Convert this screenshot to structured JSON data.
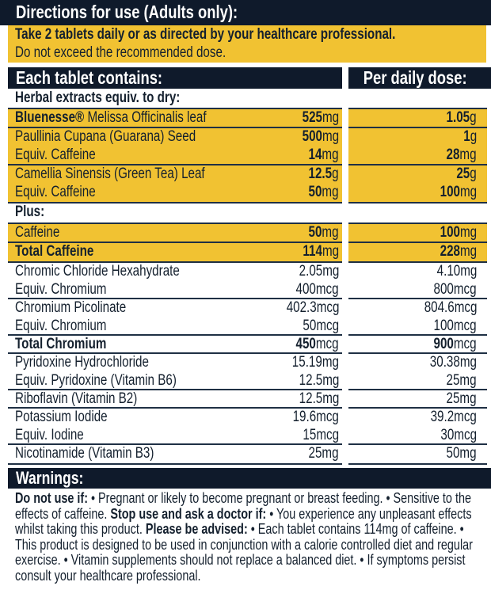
{
  "directions": {
    "title": "Directions for use (Adults only):",
    "line1": "Take 2 tablets daily or as directed by your healthcare professional.",
    "line2": "Do not exceed the recommended dose."
  },
  "table": {
    "header_left": "Each tablet contains:",
    "header_right": "Per daily dose:",
    "herbal_label": "Herbal extracts equiv. to dry:",
    "plus_label": "Plus:",
    "groups": [
      {
        "yellow": true,
        "lines": [
          {
            "name_bold": "Bluenesse®",
            "name": " Melissa Officinalis leaf",
            "amount_num": "525",
            "amount_unit": "mg",
            "daily_num": "1.05",
            "daily_unit": "g",
            "num_bold": true
          }
        ]
      },
      {
        "yellow": true,
        "lines": [
          {
            "name": "Paullinia Cupana (Guarana) Seed",
            "amount_num": "500",
            "amount_unit": "mg",
            "daily_num": "1",
            "daily_unit": "g",
            "num_bold": true
          },
          {
            "name": "Equiv. Caffeine",
            "amount_num": "14",
            "amount_unit": "mg",
            "daily_num": "28",
            "daily_unit": "mg",
            "num_bold": true
          }
        ]
      },
      {
        "yellow": true,
        "last": true,
        "lines": [
          {
            "name": "Camellia Sinensis (Green Tea) Leaf",
            "amount_num": "12.5",
            "amount_unit": "g",
            "daily_num": "25",
            "daily_unit": "g",
            "num_bold": true
          },
          {
            "name": "Equiv. Caffeine",
            "amount_num": "50",
            "amount_unit": "mg",
            "daily_num": "100",
            "daily_unit": "mg",
            "num_bold": true
          }
        ]
      },
      {
        "yellow": true,
        "lines": [
          {
            "name": "Caffeine",
            "amount_num": "50",
            "amount_unit": "mg",
            "daily_num": "100",
            "daily_unit": "mg",
            "num_bold": true
          }
        ]
      },
      {
        "yellow": true,
        "lines": [
          {
            "name_bold": "Total Caffeine",
            "amount_num": "114",
            "amount_unit": "mg",
            "daily_num": "228",
            "daily_unit": "mg",
            "num_bold": true
          }
        ]
      },
      {
        "lines": [
          {
            "name": "Chromic Chloride Hexahydrate",
            "amount_num": "2.05",
            "amount_unit": "mg",
            "daily_num": "4.10",
            "daily_unit": "mg"
          },
          {
            "name": "Equiv. Chromium",
            "amount_num": "400",
            "amount_unit": "mcg",
            "daily_num": "800",
            "daily_unit": "mcg"
          }
        ]
      },
      {
        "lines": [
          {
            "name": "Chromium Picolinate",
            "amount_num": "402.3",
            "amount_unit": "mcg",
            "daily_num": "804.6",
            "daily_unit": "mcg"
          },
          {
            "name": "Equiv. Chromium",
            "amount_num": "50",
            "amount_unit": "mcg",
            "daily_num": "100",
            "daily_unit": "mcg"
          }
        ]
      },
      {
        "lines": [
          {
            "name_bold": "Total Chromium",
            "amount_num": "450",
            "amount_unit": "mcg",
            "daily_num": "900",
            "daily_unit": "mcg",
            "num_bold": true
          }
        ]
      },
      {
        "lines": [
          {
            "name": "Pyridoxine Hydrochloride",
            "amount_num": "15.19",
            "amount_unit": "mg",
            "daily_num": "30.38",
            "daily_unit": "mg"
          },
          {
            "name": "Equiv. Pyridoxine (Vitamin B6)",
            "amount_num": "12.5",
            "amount_unit": "mg",
            "daily_num": "25",
            "daily_unit": "mg"
          }
        ]
      },
      {
        "lines": [
          {
            "name": "Riboflavin (Vitamin B2)",
            "amount_num": "12.5",
            "amount_unit": "mg",
            "daily_num": "25",
            "daily_unit": "mg"
          }
        ]
      },
      {
        "lines": [
          {
            "name": "Potassium Iodide",
            "amount_num": "19.6",
            "amount_unit": "mcg",
            "daily_num": "39.2",
            "daily_unit": "mcg"
          },
          {
            "name": "Equiv. Iodine",
            "amount_num": "15",
            "amount_unit": "mcg",
            "daily_num": "30",
            "daily_unit": "mcg"
          }
        ]
      },
      {
        "last": true,
        "lines": [
          {
            "name": "Nicotinamide (Vitamin B3)",
            "amount_num": "25",
            "amount_unit": "mg",
            "daily_num": "50",
            "daily_unit": "mg"
          }
        ]
      }
    ]
  },
  "warnings": {
    "title": "Warnings:",
    "segments": [
      {
        "bold": true,
        "text": "Do not use if:"
      },
      {
        "text": " • Pregnant or likely to become pregnant or breast feeding. • Sensitive to the effects of caffeine.  "
      },
      {
        "bold": true,
        "text": "Stop use and ask a doctor if:"
      },
      {
        "text": " • You experience any unpleasant effects whilst taking this product. "
      },
      {
        "bold": true,
        "text": "Please be advised:"
      },
      {
        "text": " • Each tablet contains 114mg of caffeine. • This product is designed to be used in conjunction with a calorie controlled diet and regular exercise. • Vitamin supplements should not replace a balanced diet. • If symptoms persist consult your healthcare professional."
      }
    ]
  },
  "colors": {
    "navy": "#0f1a2b",
    "yellow": "#f1c232"
  }
}
